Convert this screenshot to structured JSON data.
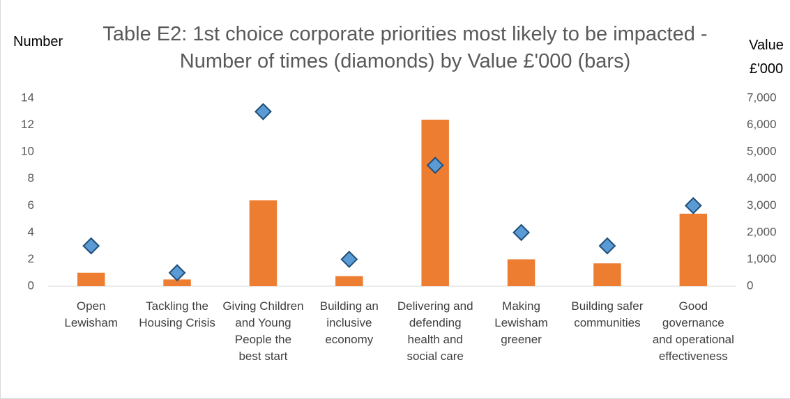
{
  "chart_data": {
    "type": "combo",
    "title": "Table E2: 1st choice corporate priorities most likely to be impacted - Number of times (diamonds) by Value £'000 (bars)",
    "ylabel": "Number",
    "y2label": "Value £'000",
    "categories": [
      "Open Lewisham",
      "Tackling the Housing Crisis",
      "Giving Children and Young People the best start",
      "Building an inclusive economy",
      "Delivering and defending health and social care",
      "Making Lewisham greener",
      "Building safer communities",
      "Good governance and operational effectiveness"
    ],
    "series": [
      {
        "name": "Value £'000",
        "type": "bar",
        "axis": "y2",
        "color": "#ed7d31",
        "values": [
          500,
          250,
          3200,
          375,
          6200,
          1000,
          850,
          2700
        ]
      },
      {
        "name": "Number of times",
        "type": "scatter",
        "axis": "y",
        "color": "#5b9bd5",
        "values": [
          3,
          1,
          13,
          2,
          9,
          4,
          3,
          6
        ]
      }
    ],
    "ylim": [
      0,
      14
    ],
    "yticks": [
      0,
      2,
      4,
      6,
      8,
      10,
      12,
      14
    ],
    "y2lim": [
      0,
      7000
    ],
    "y2ticks": [
      0,
      {
        "value": 1000,
        "label": "1,000"
      },
      {
        "value": 2000,
        "label": "2,000"
      },
      {
        "value": 3000,
        "label": "3,000"
      },
      {
        "value": 4000,
        "label": "4,000"
      },
      {
        "value": 5000,
        "label": "5,000"
      },
      {
        "value": 6000,
        "label": "6,000"
      },
      {
        "value": 7000,
        "label": "7,000"
      }
    ],
    "grid": false
  }
}
